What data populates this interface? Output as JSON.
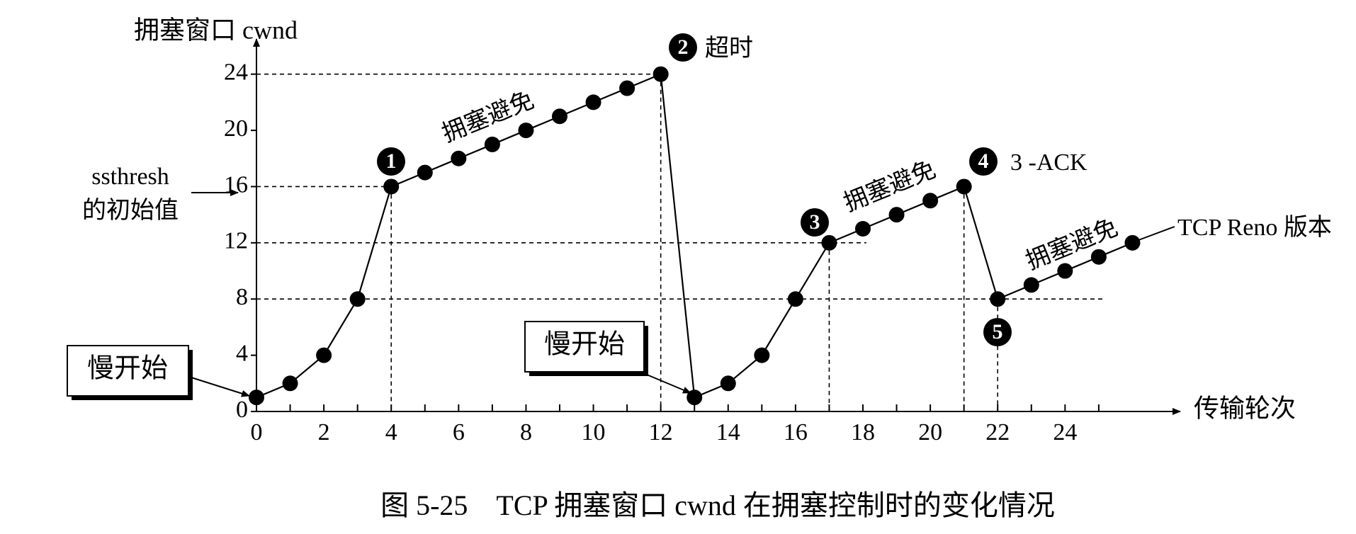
{
  "chart_data": {
    "type": "line",
    "title": "图 5-25　TCP 拥塞窗口 cwnd 在拥塞控制时的变化情况",
    "y_label": "拥塞窗口  cwnd",
    "x_label": "传输轮次",
    "x": [
      0,
      1,
      2,
      3,
      4,
      5,
      6,
      7,
      8,
      9,
      10,
      11,
      12,
      13,
      14,
      15,
      16,
      17,
      18,
      19,
      20,
      21,
      22,
      23,
      24,
      25,
      26
    ],
    "values": [
      1,
      2,
      4,
      8,
      16,
      17,
      18,
      19,
      20,
      21,
      22,
      23,
      24,
      1,
      2,
      4,
      8,
      12,
      13,
      14,
      15,
      16,
      8,
      9,
      10,
      11,
      12
    ],
    "color": "#000000",
    "xlim": [
      0,
      27
    ],
    "ylim": [
      0,
      26
    ],
    "xticks": [
      0,
      2,
      4,
      6,
      8,
      10,
      12,
      14,
      16,
      18,
      20,
      22,
      24
    ],
    "xminorticks": [
      1,
      3,
      5,
      7,
      9,
      11,
      13,
      15,
      17,
      19,
      21,
      23,
      25
    ],
    "yticks": [
      0,
      4,
      8,
      12,
      16,
      20,
      24
    ],
    "markers": [
      "1",
      "2",
      "3",
      "4",
      "5"
    ],
    "timeout": "超时",
    "three_ack": "3 -ACK",
    "version": "TCP Reno 版本",
    "ssthresh": [
      "ssthresh",
      "的初始值"
    ],
    "slow_start": [
      "慢开始",
      "慢开始"
    ],
    "avoidance": [
      "拥塞避免",
      "拥塞避免",
      "拥塞避免"
    ]
  }
}
